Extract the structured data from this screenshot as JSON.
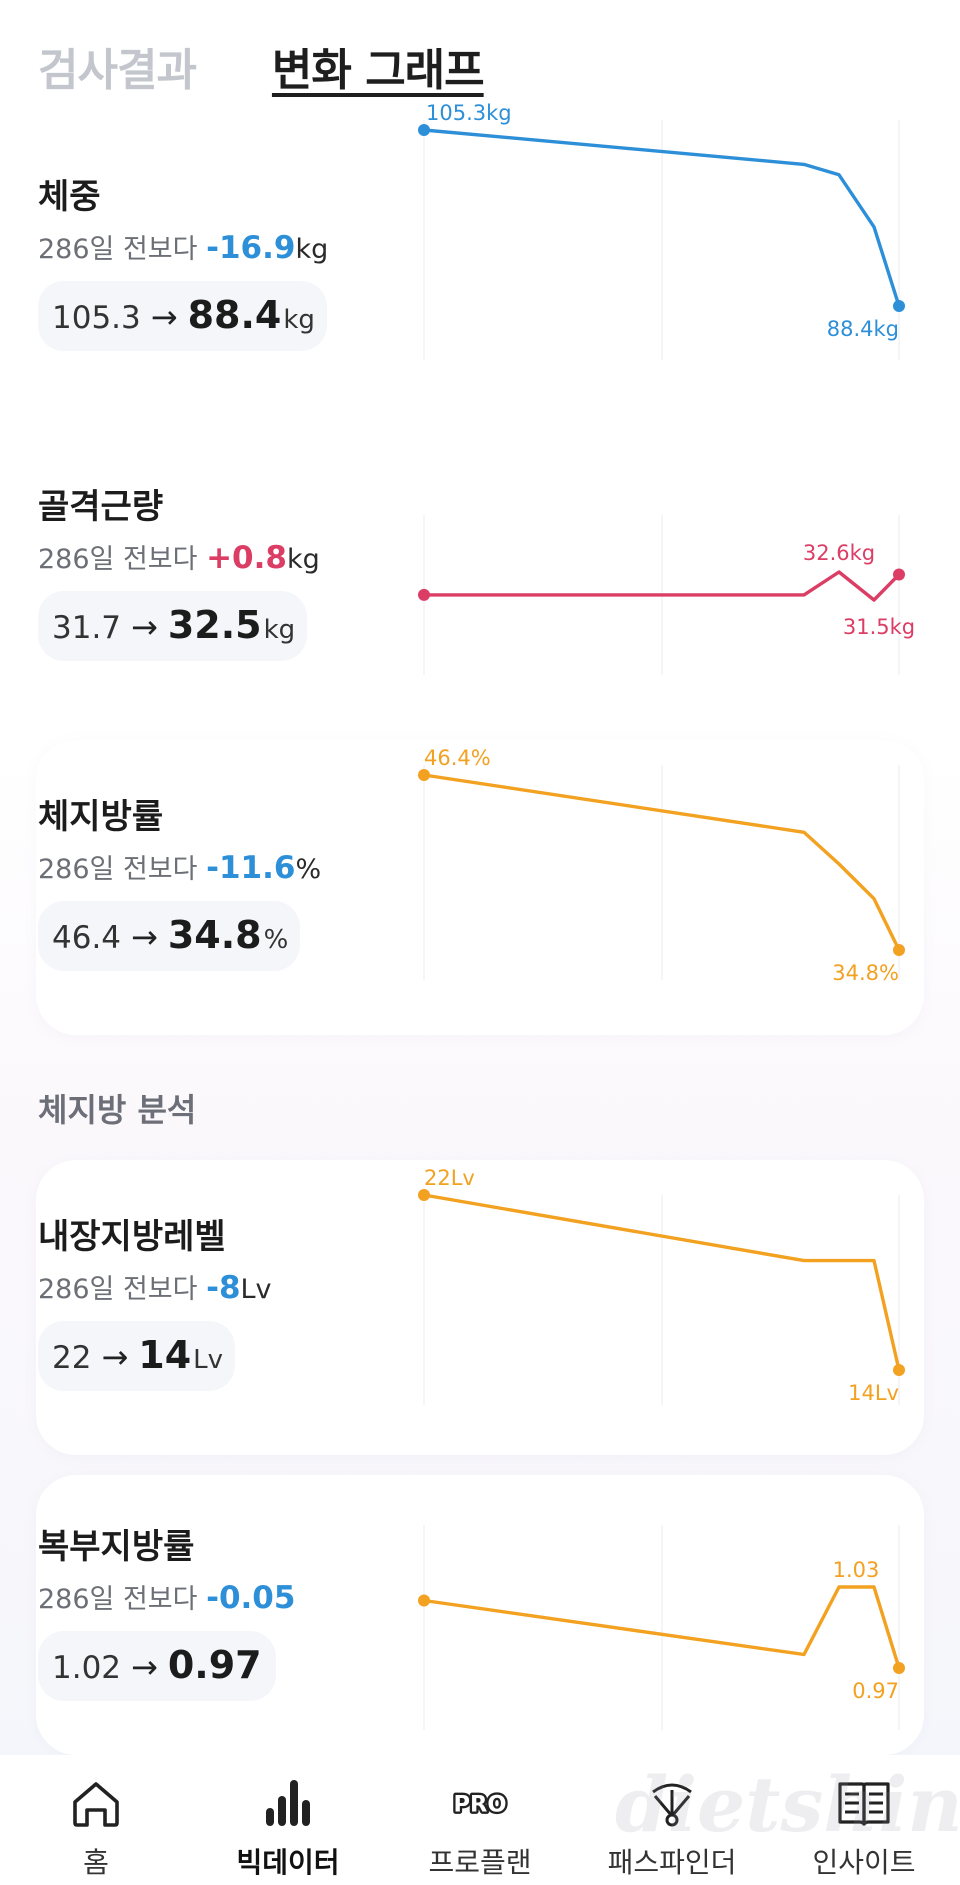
{
  "tabs": {
    "results": "검사결과",
    "graph": "변화 그래프"
  },
  "metrics": [
    {
      "name": "체중",
      "days": "286일 전보다",
      "delta": "-16.9",
      "delta_unit": "kg",
      "sign": "neg",
      "from": "105.3",
      "to": "88.4",
      "unit": "kg",
      "color": "#2d8fd8",
      "chart_data": {
        "type": "line",
        "values": [
          105.3,
          102.0,
          101.0,
          96.0,
          88.4
        ],
        "labels": {
          "first": "105.3kg",
          "last": "88.4kg"
        }
      }
    },
    {
      "name": "골격근량",
      "days": "286일 전보다",
      "delta": "+0.8",
      "delta_unit": "kg",
      "sign": "pos",
      "from": "31.7",
      "to": "32.5",
      "unit": "kg",
      "color": "#dc3d65",
      "chart_data": {
        "type": "line",
        "values": [
          31.7,
          31.7,
          32.6,
          31.5,
          32.5
        ],
        "labels": {
          "max": "32.6kg",
          "min": "31.5kg"
        }
      }
    },
    {
      "name": "체지방률",
      "days": "286일 전보다",
      "delta": "-11.6",
      "delta_unit": "%",
      "sign": "neg",
      "from": "46.4",
      "to": "34.8",
      "unit": "%",
      "color": "#f2a120",
      "chart_data": {
        "type": "line",
        "values": [
          46.4,
          42.6,
          40.5,
          38.2,
          34.8
        ],
        "labels": {
          "first": "46.4%",
          "last": "34.8%"
        }
      }
    },
    {
      "name": "내장지방레벨",
      "days": "286일 전보다",
      "delta": "-8",
      "delta_unit": "Lv",
      "sign": "neg",
      "from": "22",
      "to": "14",
      "unit": "Lv",
      "color": "#f2a120",
      "chart_data": {
        "type": "line",
        "values": [
          22,
          19,
          19,
          19,
          14
        ],
        "labels": {
          "first": "22Lv",
          "last": "14Lv"
        }
      }
    },
    {
      "name": "복부지방률",
      "days": "286일 전보다",
      "delta": "-0.05",
      "delta_unit": "",
      "sign": "neg",
      "from": "1.02",
      "to": "0.97",
      "unit": "",
      "color": "#f2a120",
      "chart_data": {
        "type": "line",
        "values": [
          1.02,
          0.98,
          1.03,
          1.03,
          0.97
        ],
        "labels": {
          "max": "1.03",
          "last": "0.97"
        }
      }
    }
  ],
  "section": {
    "body_fat_analysis": "체지방 분석"
  },
  "nav": [
    {
      "label": "홈",
      "icon": "home-icon",
      "active": false
    },
    {
      "label": "빅데이터",
      "icon": "bar-chart-icon",
      "active": true
    },
    {
      "label": "프로플랜",
      "icon": "pro-icon",
      "active": false
    },
    {
      "label": "패스파인더",
      "icon": "pathfinder-icon",
      "active": false
    },
    {
      "label": "인사이트",
      "icon": "book-icon",
      "active": false
    }
  ],
  "nav_pro_text": "PRO",
  "watermark": "dietshin.com"
}
